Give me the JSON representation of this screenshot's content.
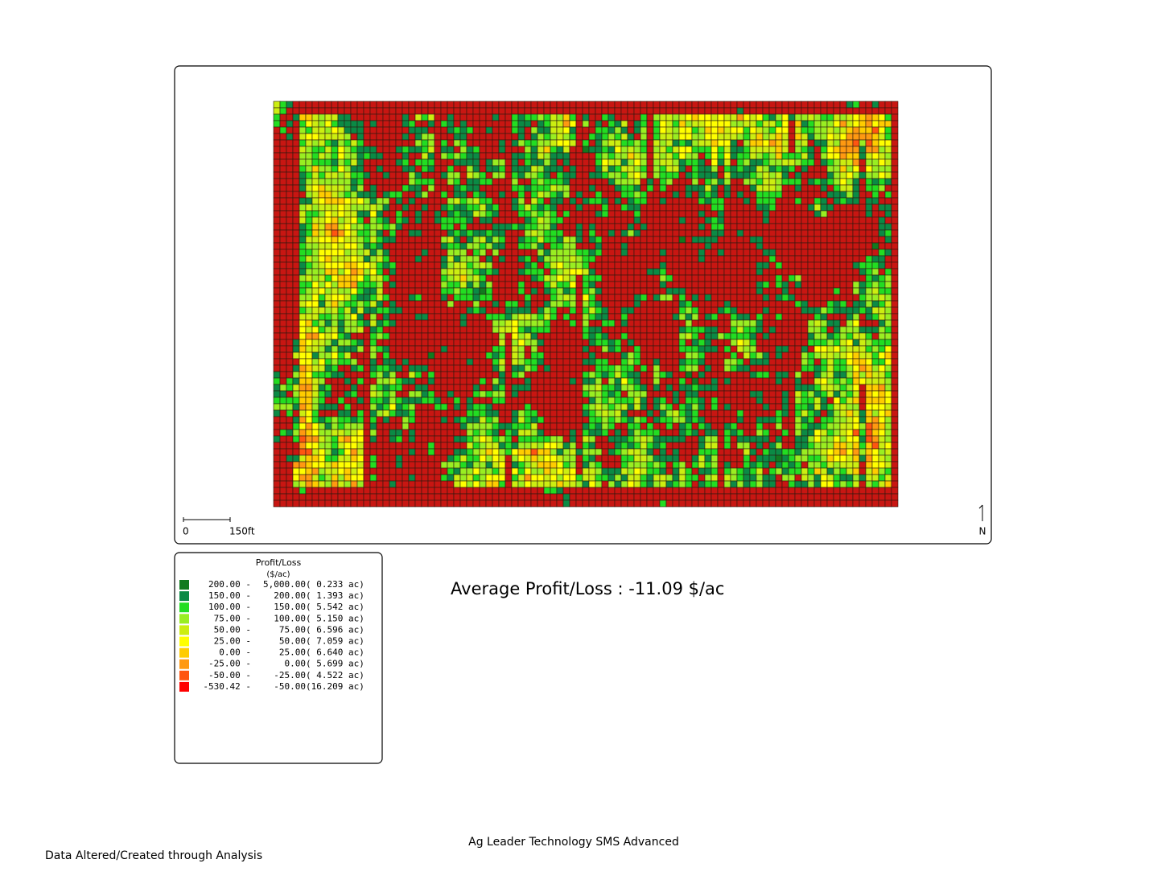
{
  "scale_bar": {
    "start": "0",
    "end": "150ft"
  },
  "north": "N",
  "legend": {
    "title": "Profit/Loss",
    "unit": "($/ac)",
    "items": [
      {
        "min": "200.00 -",
        "max": "5,000.00",
        "area": "( 0.233 ac)",
        "color": "#127a1f"
      },
      {
        "min": "150.00 -",
        "max": "200.00",
        "area": "( 1.393 ac)",
        "color": "#0b8a45"
      },
      {
        "min": "100.00 -",
        "max": "150.00",
        "area": "( 5.542 ac)",
        "color": "#22dd22"
      },
      {
        "min": "75.00 -",
        "max": "100.00",
        "area": "( 5.150 ac)",
        "color": "#99ee22"
      },
      {
        "min": "50.00 -",
        "max": "75.00",
        "area": "( 6.596 ac)",
        "color": "#ccee11"
      },
      {
        "min": "25.00 -",
        "max": "50.00",
        "area": "( 7.059 ac)",
        "color": "#ffff00"
      },
      {
        "min": "0.00 -",
        "max": "25.00",
        "area": "( 6.640 ac)",
        "color": "#ffcc00"
      },
      {
        "min": "-25.00 -",
        "max": "0.00",
        "area": "( 5.699 ac)",
        "color": "#ff9911"
      },
      {
        "min": "-50.00 -",
        "max": "-25.00",
        "area": "( 4.522 ac)",
        "color": "#ff5511"
      },
      {
        "min": "-530.42 -",
        "max": "-50.00",
        "area": "(16.209 ac)",
        "color": "#ff0000"
      }
    ]
  },
  "average": "Average Profit/Loss : -11.09 $/ac",
  "footer": {
    "center": "Ag Leader Technology SMS Advanced",
    "left": "Data Altered/Created through Analysis"
  }
}
